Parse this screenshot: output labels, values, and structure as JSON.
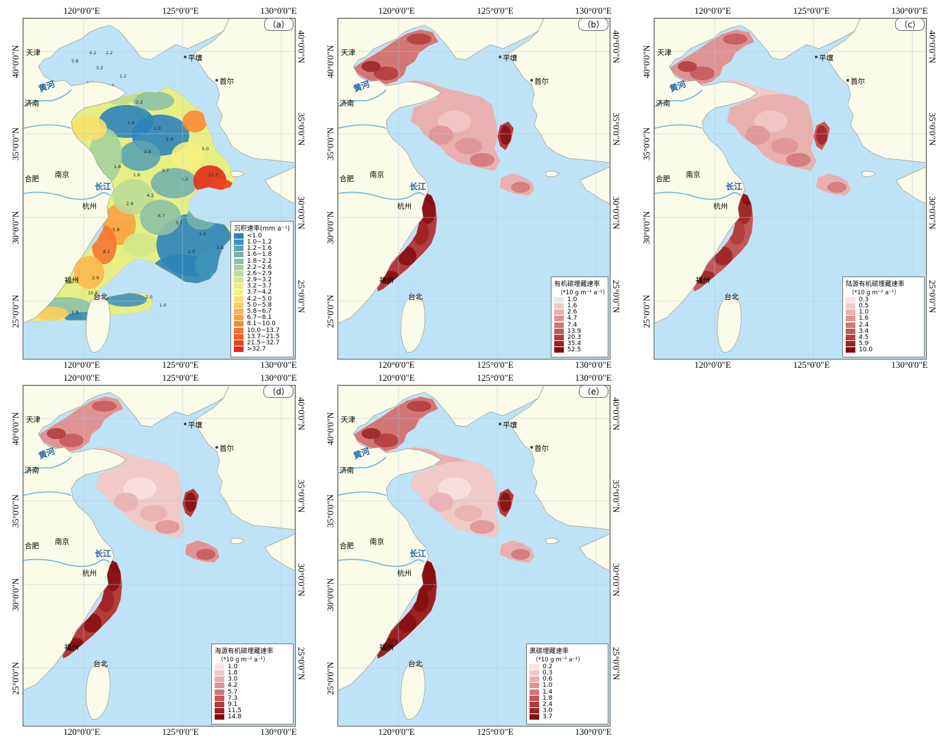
{
  "map": {
    "longitude_ticks": [
      "120°0'0\"E",
      "125°0'0\"E",
      "130°0'0\"E"
    ],
    "latitude_ticks": [
      "40°0'0\"N",
      "35°0'0\"N",
      "30°0'0\"N",
      "25°0'0\"N"
    ],
    "places": {
      "tianjin": "天津",
      "pyongyang": "平壤",
      "seoul": "首尔",
      "jinan": "济南",
      "hefei": "合肥",
      "nanjing": "南京",
      "hangzhou": "杭州",
      "fuzhou": "福州",
      "taipei": "台北",
      "yellow_river": "黄河",
      "yangtze": "长江"
    },
    "colors": {
      "sea": "#bfe3f6",
      "land": "#fbfbe9",
      "sed_low": "#2e86c1",
      "sed_high": "#e8281c",
      "oc_low": "#f7dede",
      "oc_high": "#8b0d14"
    }
  },
  "panels": [
    {
      "label": "（a）",
      "legend_title": "沉积速率(mm a⁻¹)",
      "legend_unit": "",
      "classes": [
        "<1.0",
        "1.0~1.2",
        "1.2~1.6",
        "1.6~1.8",
        "1.8~2.2",
        "2.2~2.6",
        "2.6~2.9",
        "2.9~3.2",
        "3.2~3.7",
        "3.7~4.2",
        "4.2~5.0",
        "5.0~5.8",
        "5.8~6.7",
        "6.7~8.1",
        "8.1~10.0",
        "10.0~13.7",
        "13.7~21.5",
        "21.5~32.7",
        ">32.7"
      ],
      "class_colors": [
        "#2b83ba",
        "#3f93b8",
        "#5aa3b2",
        "#74b2ab",
        "#8dc1a4",
        "#a6d09b",
        "#bddc93",
        "#d2e78b",
        "#e6ef84",
        "#f6f07e",
        "#f9e06b",
        "#fccd58",
        "#fdb74b",
        "#fca13f",
        "#f98b35",
        "#f5742c",
        "#f05d25",
        "#ea4520",
        "#e32b1b"
      ]
    },
    {
      "label": "（b）",
      "legend_title": "有机碳埋藏速率",
      "legend_unit": "（*10 g m⁻² a⁻¹）",
      "classes": [
        "1.0",
        "1.6",
        "2.6",
        "4.7",
        "7.4",
        "13.9",
        "20.3",
        "35.4",
        "52.5"
      ],
      "class_colors": [
        "#f8e3e3",
        "#f2c9c9",
        "#e9b0b0",
        "#df9393",
        "#d37676",
        "#c45858",
        "#b23b3b",
        "#9c2222",
        "#850d10"
      ]
    },
    {
      "label": "（c）",
      "legend_title": "陆源有机碳埋藏速率",
      "legend_unit": "（*10 g m⁻² a⁻¹）",
      "classes": [
        "0.3",
        "0.5",
        "1.0",
        "1.6",
        "2.4",
        "3.4",
        "4.5",
        "5.9",
        "10.0"
      ],
      "class_colors": [
        "#f8e3e3",
        "#f2c9c9",
        "#e9b0b0",
        "#df9393",
        "#d37676",
        "#c45858",
        "#b23b3b",
        "#9c2222",
        "#850d10"
      ]
    },
    {
      "label": "（d）",
      "legend_title": "海源有机碳埋藏速率",
      "legend_unit": "（*10 g m⁻² a⁻¹）",
      "classes": [
        "1.0",
        "1.8",
        "3.0",
        "4.2",
        "5.7",
        "7.3",
        "9.1",
        "11.5",
        "14.8"
      ],
      "class_colors": [
        "#f8e3e3",
        "#f2c9c9",
        "#e9b0b0",
        "#df9393",
        "#d37676",
        "#c45858",
        "#b23b3b",
        "#9c2222",
        "#850d10"
      ]
    },
    {
      "label": "（e）",
      "legend_title": "黑碳埋藏速率",
      "legend_unit": "（*10 g m⁻² a⁻¹）",
      "classes": [
        "0.2",
        "0.3",
        "0.6",
        "1.0",
        "1.4",
        "1.8",
        "2.4",
        "3.0",
        "3.7"
      ],
      "class_colors": [
        "#f8e3e3",
        "#f2c9c9",
        "#e9b0b0",
        "#df9393",
        "#d37676",
        "#c45858",
        "#b23b3b",
        "#9c2222",
        "#850d10"
      ]
    }
  ]
}
